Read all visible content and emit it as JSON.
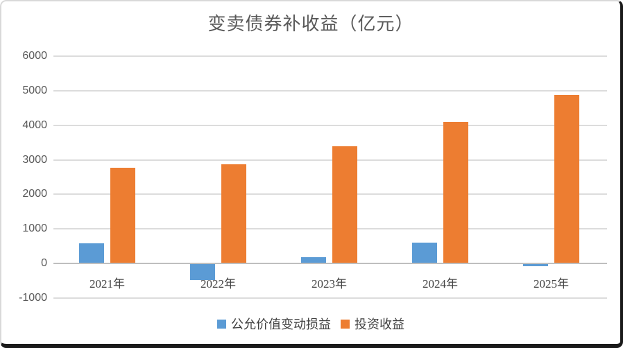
{
  "chart_data": {
    "type": "bar",
    "title": "变卖债券补收益（亿元）",
    "categories": [
      "2021年",
      "2022年",
      "2023年",
      "2024年",
      "2025年"
    ],
    "series": [
      {
        "name": "公允价值变动损益",
        "color": "#5B9BD5",
        "values": [
          580,
          -470,
          180,
          600,
          -70
        ]
      },
      {
        "name": "投资收益",
        "color": "#ED7D31",
        "values": [
          2770,
          2870,
          3390,
          4090,
          4870
        ]
      }
    ],
    "ylim": [
      -1000,
      6000
    ],
    "yticks": [
      6000,
      5000,
      4000,
      3000,
      2000,
      1000,
      0,
      -1000
    ],
    "xlabel": "",
    "ylabel": "",
    "grid": "horizontal",
    "legend_position": "bottom"
  },
  "colors": {
    "gridline": "#dcdcdc",
    "zero_axis": "#bfbfbf",
    "axis_text": "#595959",
    "title_text": "#595959"
  }
}
